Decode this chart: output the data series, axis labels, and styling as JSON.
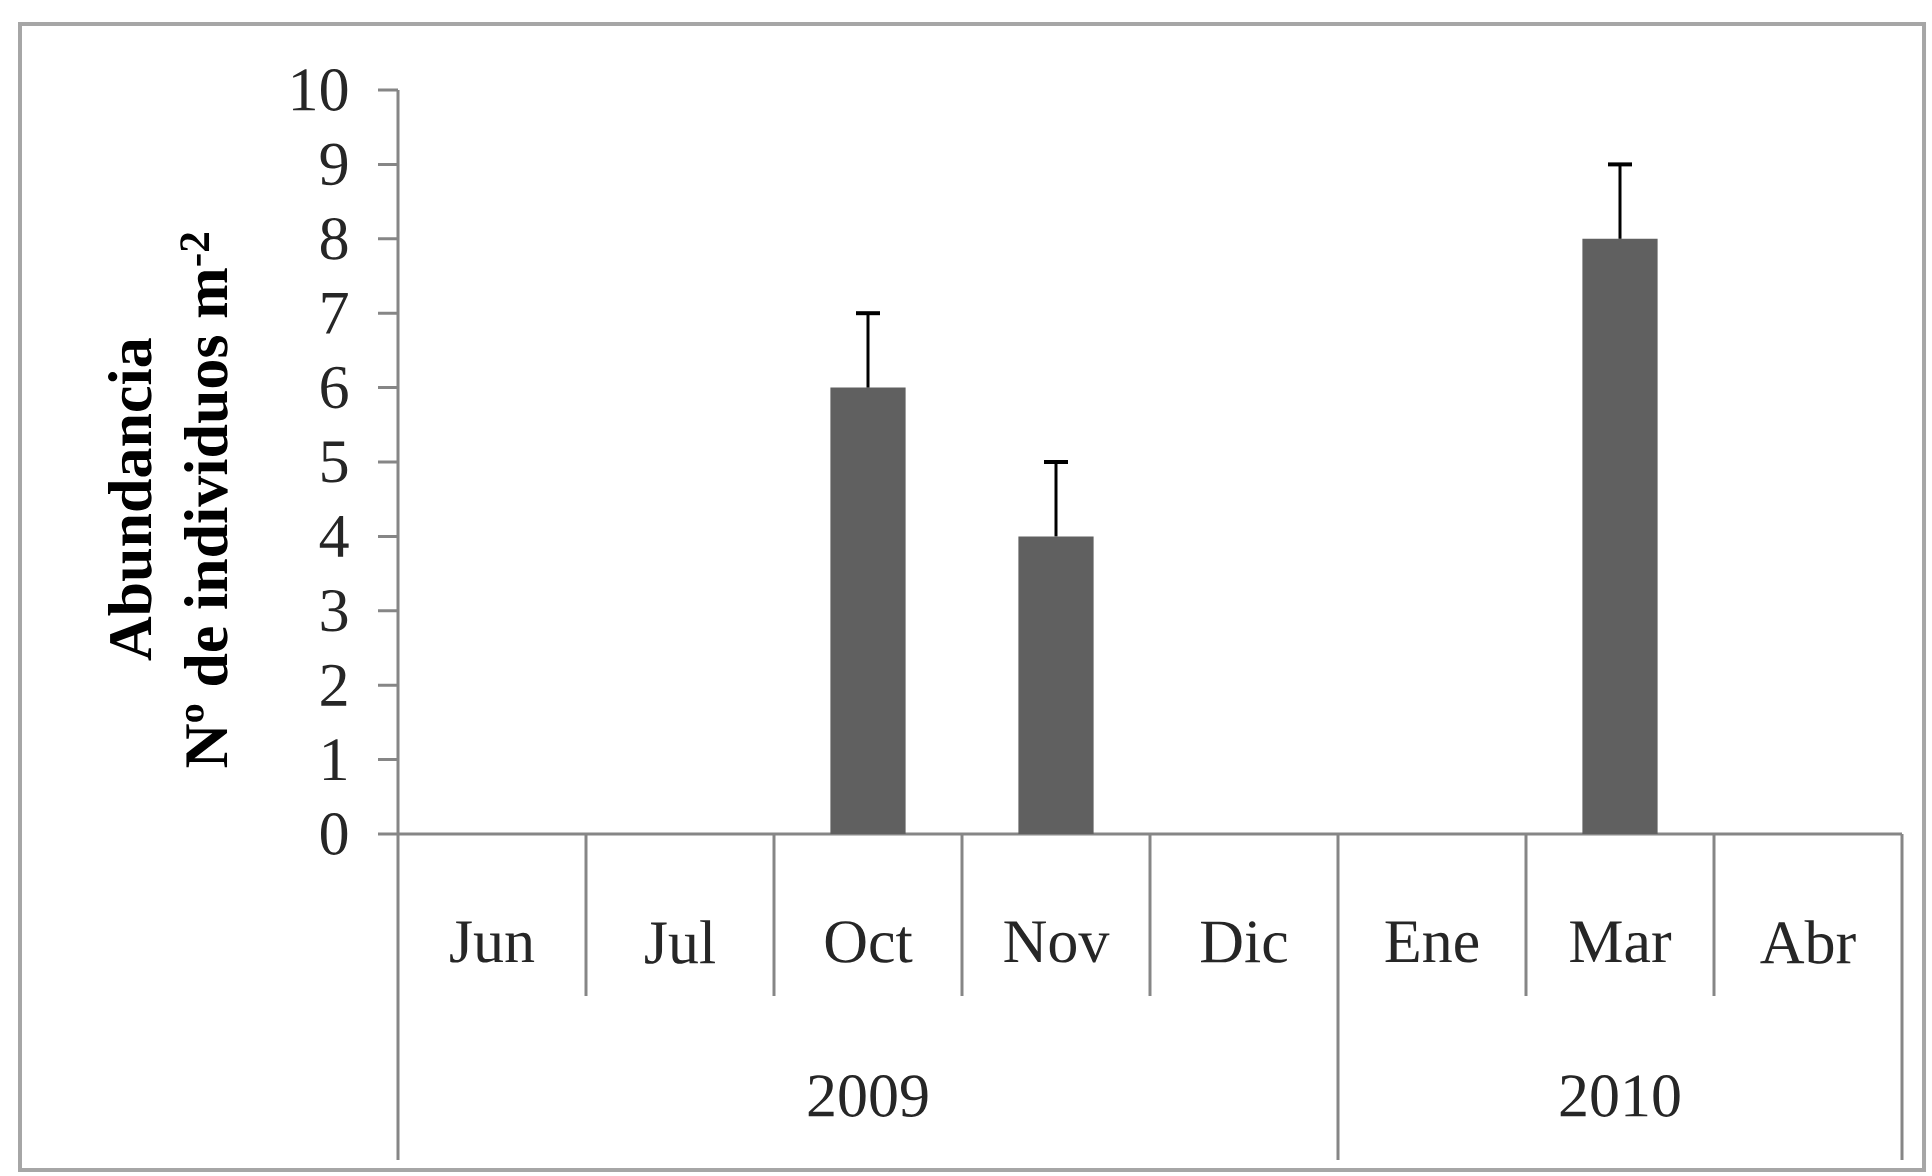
{
  "chart_data": {
    "type": "bar",
    "ylabel": "Abundancia\nNº de individuos m$^{-2}$",
    "categories": [
      "Jun",
      "Jul",
      "Oct",
      "Nov",
      "Dic",
      "Ene",
      "Mar",
      "Abr"
    ],
    "values": [
      0,
      0,
      6,
      4,
      0,
      0,
      8,
      0
    ],
    "errors": [
      null,
      null,
      [
        6,
        7
      ],
      [
        4,
        5
      ],
      null,
      null,
      [
        8,
        9
      ],
      null
    ],
    "color": "#606060",
    "ylim": [
      0,
      10
    ],
    "yticks": [
      0,
      1,
      2,
      3,
      4,
      5,
      6,
      7,
      8,
      9,
      10
    ],
    "annotations": [
      "2009",
      "2010"
    ]
  }
}
